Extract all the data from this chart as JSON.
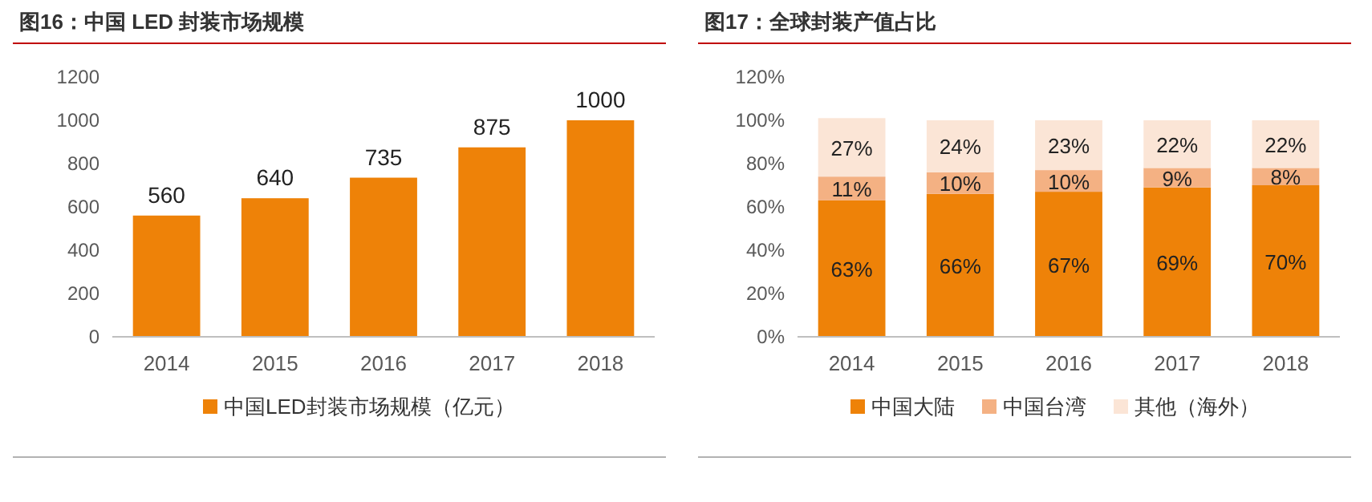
{
  "chart_data": [
    {
      "type": "bar",
      "title": "图16：中国 LED 封装市场规模",
      "categories": [
        "2014",
        "2015",
        "2016",
        "2017",
        "2018"
      ],
      "series": [
        {
          "name": "中国LED封装市场规模（亿元）",
          "color": "#ee8208",
          "values": [
            560,
            640,
            735,
            875,
            1000
          ]
        }
      ],
      "ylim": [
        0,
        1200
      ],
      "yticks": [
        0,
        200,
        400,
        600,
        800,
        1000,
        1200
      ],
      "data_labels": true,
      "legend": "bottom",
      "grid": false
    },
    {
      "type": "bar",
      "title": "图17：全球封装产值占比",
      "categories": [
        "2014",
        "2015",
        "2016",
        "2017",
        "2018"
      ],
      "stacked": true,
      "series": [
        {
          "name": "中国大陆",
          "color": "#ee8208",
          "values": [
            63,
            66,
            67,
            69,
            70
          ],
          "value_labels": [
            "63%",
            "66%",
            "67%",
            "69%",
            "70%"
          ]
        },
        {
          "name": "中国台湾",
          "color": "#f4b183",
          "values": [
            11,
            10,
            10,
            9,
            8
          ],
          "value_labels": [
            "11%",
            "10%",
            "10%",
            "9%",
            "8%"
          ]
        },
        {
          "name": "其他（海外）",
          "color": "#fbe5d6",
          "values": [
            27,
            24,
            23,
            22,
            22
          ],
          "value_labels": [
            "27%",
            "24%",
            "23%",
            "22%",
            "22%"
          ]
        }
      ],
      "ylim": [
        0,
        120
      ],
      "yticks": [
        {
          "value": 0,
          "label": "0%"
        },
        {
          "value": 20,
          "label": "20%"
        },
        {
          "value": 40,
          "label": "40%"
        },
        {
          "value": 60,
          "label": "60%"
        },
        {
          "value": 80,
          "label": "80%"
        },
        {
          "value": 100,
          "label": "100%"
        },
        {
          "value": 120,
          "label": "120%"
        }
      ],
      "legend": "bottom",
      "grid": false
    }
  ]
}
